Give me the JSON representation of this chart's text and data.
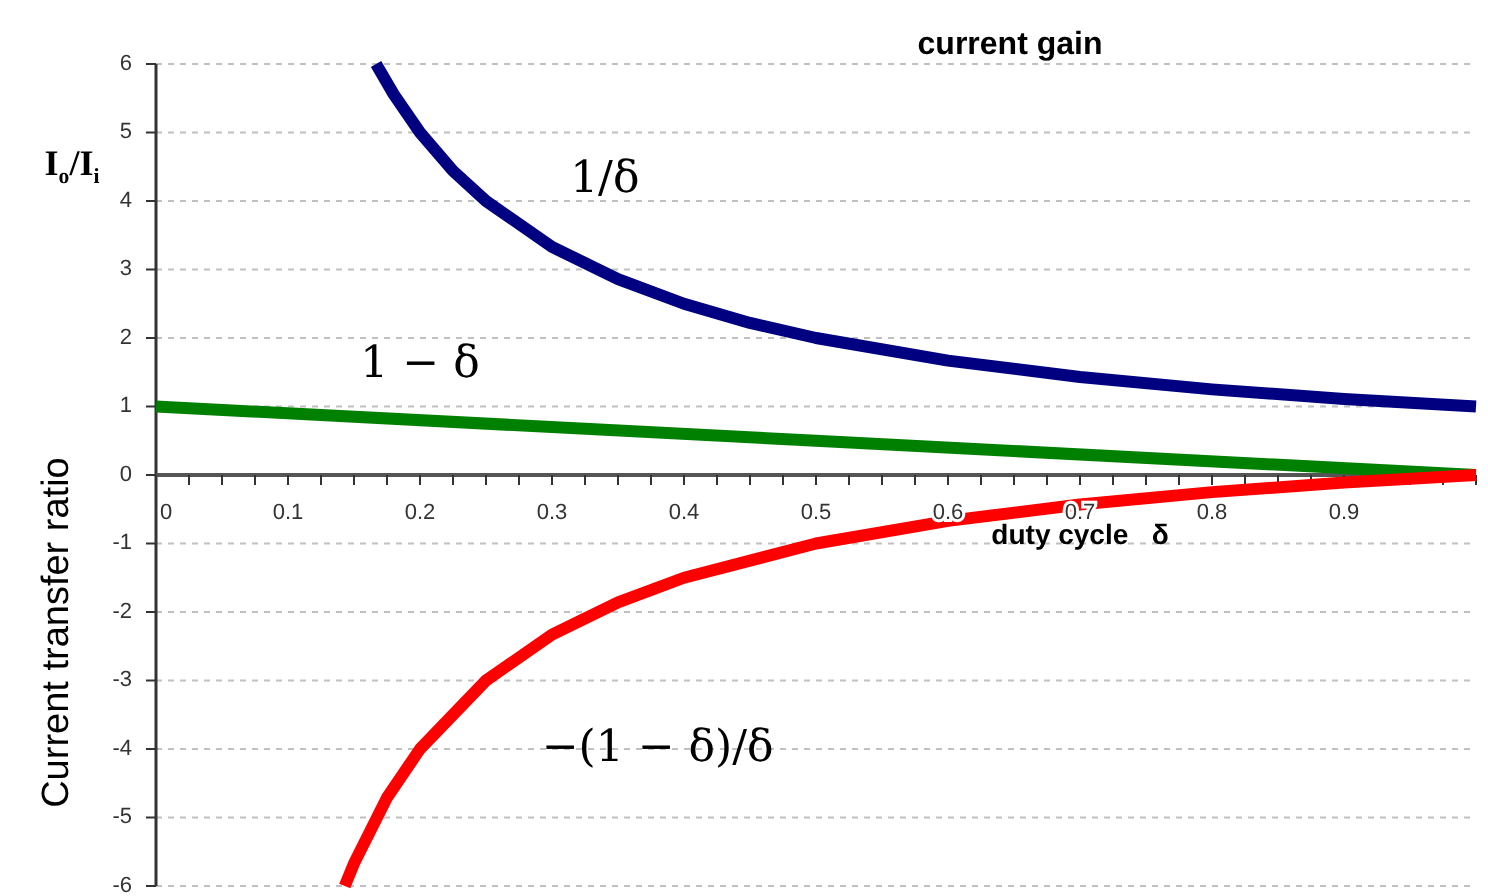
{
  "chart_data": {
    "type": "line",
    "title": "current gain",
    "xlabel": "duty cycle   δ",
    "ylabel": "Current transfer ratio",
    "xlim": [
      0,
      1
    ],
    "ylim": [
      -6,
      6
    ],
    "xticks": [
      0,
      0.1,
      0.2,
      0.3,
      0.4,
      0.5,
      0.6,
      0.7,
      0.8,
      0.9
    ],
    "yticks": [
      -6,
      -5,
      -4,
      -3,
      -2,
      -1,
      0,
      1,
      2,
      3,
      4,
      5,
      6
    ],
    "grid": "y",
    "marker": "none",
    "line_style": "solid",
    "series": [
      {
        "color": "#000080",
        "x": [
          0.1667,
          0.18,
          0.2,
          0.225,
          0.25,
          0.3,
          0.35,
          0.4,
          0.45,
          0.5,
          0.6,
          0.7,
          0.8,
          0.9,
          1
        ],
        "values": [
          6,
          5.56,
          5,
          4.44,
          4,
          3.33,
          2.86,
          2.5,
          2.22,
          2,
          1.67,
          1.43,
          1.25,
          1.11,
          1
        ]
      },
      {
        "color": "#008000",
        "x": [
          0,
          0.5,
          1
        ],
        "values": [
          1,
          0.5,
          0
        ]
      },
      {
        "color": "#ff0000",
        "x": [
          0.143,
          0.15,
          0.175,
          0.2,
          0.25,
          0.3,
          0.35,
          0.4,
          0.5,
          0.6,
          0.7,
          0.8,
          0.9,
          1
        ],
        "values": [
          -6,
          -5.67,
          -4.71,
          -4,
          -3,
          -2.33,
          -1.86,
          -1.5,
          -1,
          -0.67,
          -0.43,
          -0.25,
          -0.11,
          0
        ]
      }
    ],
    "annotations": [
      "I$_{o}$/I$_{i}$",
      "1/δ",
      "1 − δ",
      "−(1 − δ)/δ"
    ]
  }
}
